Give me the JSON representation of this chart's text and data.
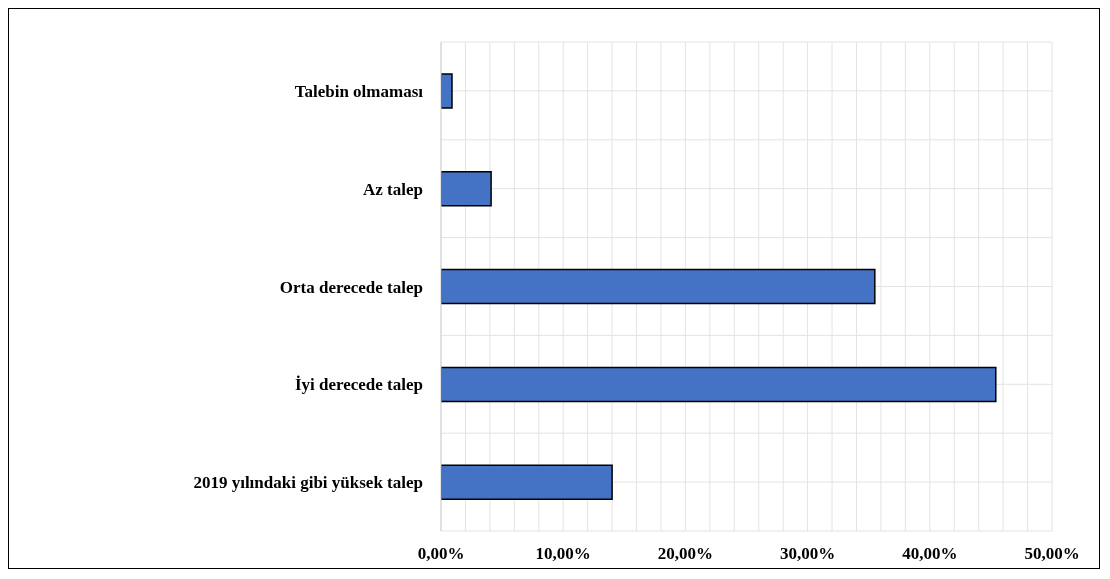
{
  "chart_data": {
    "type": "bar",
    "orientation": "horizontal",
    "categories": [
      "Talebin olmaması",
      "Az talep",
      "Orta derecede talep",
      "İyi derecede talep",
      "2019 yılındaki gibi yüksek talep"
    ],
    "values": [
      0.9,
      4.1,
      35.5,
      45.4,
      14.0
    ],
    "color": "#4472c4",
    "xlim": [
      0,
      50
    ],
    "xticks": [
      {
        "value": 0,
        "label": "0,00%"
      },
      {
        "value": 2,
        "label": null
      },
      {
        "value": 4,
        "label": null
      },
      {
        "value": 6,
        "label": null
      },
      {
        "value": 8,
        "label": null
      },
      {
        "value": 10,
        "label": "10,00%"
      },
      {
        "value": 12,
        "label": null
      },
      {
        "value": 14,
        "label": null
      },
      {
        "value": 16,
        "label": null
      },
      {
        "value": 18,
        "label": null
      },
      {
        "value": 20,
        "label": "20,00%"
      },
      {
        "value": 22,
        "label": null
      },
      {
        "value": 24,
        "label": null
      },
      {
        "value": 26,
        "label": null
      },
      {
        "value": 28,
        "label": null
      },
      {
        "value": 30,
        "label": "30,00%"
      },
      {
        "value": 32,
        "label": null
      },
      {
        "value": 34,
        "label": null
      },
      {
        "value": 36,
        "label": null
      },
      {
        "value": 38,
        "label": null
      },
      {
        "value": 40,
        "label": "40,00%"
      },
      {
        "value": 42,
        "label": null
      },
      {
        "value": 44,
        "label": null
      },
      {
        "value": 46,
        "label": null
      },
      {
        "value": 48,
        "label": null
      },
      {
        "value": 50,
        "label": "50,00%"
      }
    ],
    "grid": true
  }
}
